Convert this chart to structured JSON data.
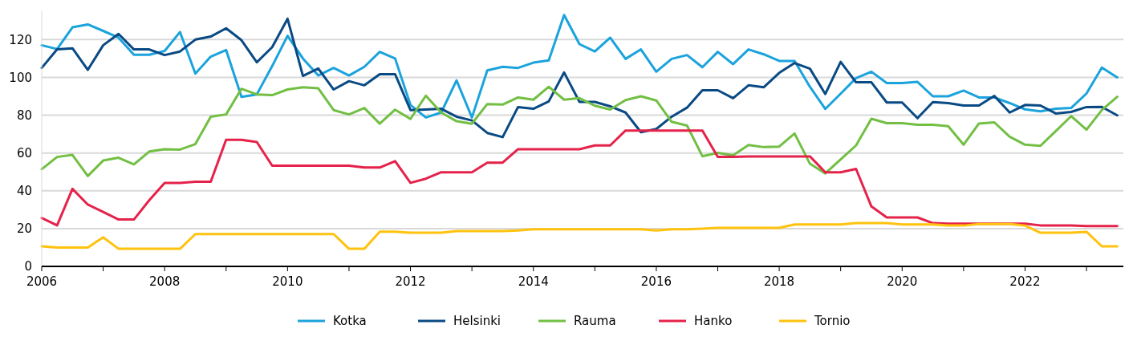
{
  "chart_data": {
    "type": "line",
    "x": [
      2006,
      2006.25,
      2006.5,
      2006.75,
      2007,
      2007.25,
      2007.5,
      2007.75,
      2008,
      2008.25,
      2008.5,
      2008.75,
      2009,
      2009.25,
      2009.5,
      2009.75,
      2010,
      2010.25,
      2010.5,
      2010.75,
      2011,
      2011.25,
      2011.5,
      2011.75,
      2012,
      2012.25,
      2012.5,
      2012.75,
      2013,
      2013.25,
      2013.5,
      2013.75,
      2014,
      2014.25,
      2014.5,
      2014.75,
      2015,
      2015.25,
      2015.5,
      2015.75,
      2016,
      2016.25,
      2016.5,
      2016.75,
      2017,
      2017.25,
      2017.5,
      2017.75,
      2018,
      2018.25,
      2018.5,
      2018.75,
      2019,
      2019.25,
      2019.5,
      2019.75,
      2020,
      2020.25,
      2020.5,
      2020.75,
      2021,
      2021.25,
      2021.5,
      2021.75,
      2022,
      2022.25,
      2022.5,
      2022.75,
      2023,
      2023.25,
      2023.5
    ],
    "series": [
      {
        "name": "Kotka",
        "color": "#1ba3dc",
        "values": [
          117,
          115,
          126.5,
          128,
          124.6,
          121,
          112,
          112,
          114,
          124,
          102,
          111,
          114.5,
          89.7,
          91,
          106,
          122,
          110,
          101,
          105,
          101,
          105.6,
          113.5,
          110,
          85.4,
          78.8,
          81.4,
          98.4,
          78.8,
          103.7,
          105.6,
          105,
          107.8,
          109,
          133,
          117.6,
          113.7,
          121,
          109.8,
          114.8,
          103,
          109.8,
          111.8,
          105.4,
          113.5,
          107,
          114.8,
          112.2,
          108.7,
          108.7,
          95,
          83.3,
          91.4,
          99.6,
          103,
          97,
          97,
          97.6,
          90,
          90,
          93,
          89.4,
          89.4,
          86.4,
          83.1,
          82,
          83.4,
          83.8,
          91.5,
          105.2,
          100
        ]
      },
      {
        "name": "Helsinki",
        "color": "#0a4a84",
        "values": [
          105,
          114.8,
          115.4,
          104,
          117,
          123,
          114.8,
          114.8,
          111.8,
          113.7,
          120,
          121.6,
          126,
          119.7,
          108,
          116,
          131,
          100.8,
          104.7,
          93.6,
          98,
          95.8,
          101.7,
          101.7,
          82.7,
          83,
          83.4,
          79.2,
          77.2,
          70.6,
          68.4,
          84.3,
          83.4,
          87.3,
          102.6,
          87,
          87,
          84.7,
          81.4,
          71,
          72.7,
          79.2,
          84,
          93.2,
          93.2,
          89,
          95.8,
          94.8,
          102.4,
          107.6,
          104.6,
          91.2,
          108.2,
          97.4,
          97.4,
          86.7,
          86.7,
          78.4,
          86.9,
          86.4,
          85.1,
          85.1,
          90.2,
          81.4,
          85.4,
          85.1,
          80.9,
          81.7,
          84.3,
          84.4,
          79.9
        ]
      },
      {
        "name": "Rauma",
        "color": "#72bf44",
        "values": [
          51.4,
          57.9,
          59,
          47.8,
          56,
          57.5,
          54,
          60.8,
          62,
          61.8,
          64.7,
          79.2,
          80.4,
          94,
          91,
          90.6,
          93.6,
          94.8,
          94.2,
          82.7,
          80.4,
          83.8,
          75.5,
          82.9,
          78,
          90.3,
          81.4,
          76.8,
          75.5,
          85.9,
          85.6,
          89.4,
          88.2,
          95,
          88.2,
          89,
          85,
          83,
          88,
          90,
          87.8,
          76.5,
          74.5,
          58.3,
          60.1,
          58.8,
          64.2,
          63.1,
          63.4,
          70.3,
          54.3,
          49.2,
          56.6,
          64,
          78.1,
          75.8,
          75.8,
          74.9,
          74.9,
          74.2,
          64.4,
          75.6,
          76.2,
          68.6,
          64.4,
          63.8,
          71.6,
          79.5,
          72.3,
          82.7,
          89.7
        ]
      },
      {
        "name": "Hanko",
        "color": "#e5224a",
        "values": [
          25.6,
          21.7,
          41,
          32.7,
          28.8,
          24.8,
          24.8,
          35,
          44.2,
          44.2,
          44.8,
          44.8,
          67,
          67,
          65.8,
          53.3,
          53.3,
          53.3,
          53.3,
          53.3,
          53.3,
          52.3,
          52.3,
          55.7,
          44.2,
          46.4,
          49.8,
          49.8,
          49.8,
          54.9,
          54.9,
          62,
          62,
          62,
          62,
          62,
          64,
          64,
          71.9,
          71.9,
          71.9,
          71.9,
          71.9,
          71.9,
          57.9,
          57.9,
          58.2,
          58.2,
          58.2,
          58.2,
          58.2,
          49.8,
          49.8,
          51.6,
          31.7,
          25.9,
          25.9,
          25.9,
          22.9,
          22.6,
          22.6,
          22.6,
          22.6,
          22.6,
          22.6,
          21.7,
          21.7,
          21.7,
          21.3,
          21.3,
          21.3
        ]
      },
      {
        "name": "Tornio",
        "color": "#ffc20e",
        "values": [
          10.6,
          10,
          10,
          10,
          15.4,
          9.3,
          9.3,
          9.3,
          9.3,
          9.3,
          17.1,
          17.1,
          17.1,
          17.1,
          17.1,
          17.1,
          17.1,
          17.1,
          17.1,
          17.1,
          9.3,
          9.3,
          18.4,
          18.4,
          17.8,
          17.8,
          17.8,
          18.7,
          18.7,
          18.7,
          18.7,
          19,
          19.6,
          19.6,
          19.6,
          19.6,
          19.6,
          19.6,
          19.6,
          19.6,
          19,
          19.6,
          19.6,
          20,
          20.4,
          20.4,
          20.4,
          20.4,
          20.4,
          22.2,
          22.2,
          22.2,
          22.2,
          22.9,
          22.9,
          22.9,
          22.2,
          22.2,
          22.2,
          21.6,
          21.6,
          22.4,
          22.4,
          22.4,
          21.6,
          17.8,
          17.8,
          17.8,
          18.3,
          10.6,
          10.6
        ]
      }
    ],
    "xlim": [
      2006,
      2023.6
    ],
    "xticks": [
      2006,
      {
        "value": 2007,
        "label": null
      },
      2008,
      {
        "value": 2009,
        "label": null
      },
      2010,
      {
        "value": 2011,
        "label": null
      },
      2012,
      {
        "value": 2013,
        "label": null
      },
      2014,
      {
        "value": 2015,
        "label": null
      },
      2016,
      {
        "value": 2017,
        "label": null
      },
      2018,
      {
        "value": 2019,
        "label": null
      },
      2020,
      {
        "value": 2021,
        "label": null
      },
      2022,
      {
        "value": 2023,
        "label": null
      }
    ],
    "ylim": [
      0,
      135
    ],
    "yticks": [
      0,
      20,
      40,
      60,
      80,
      100,
      120
    ],
    "grid": "y",
    "legend": "bottom",
    "marker": "none",
    "line_style": "solid"
  }
}
